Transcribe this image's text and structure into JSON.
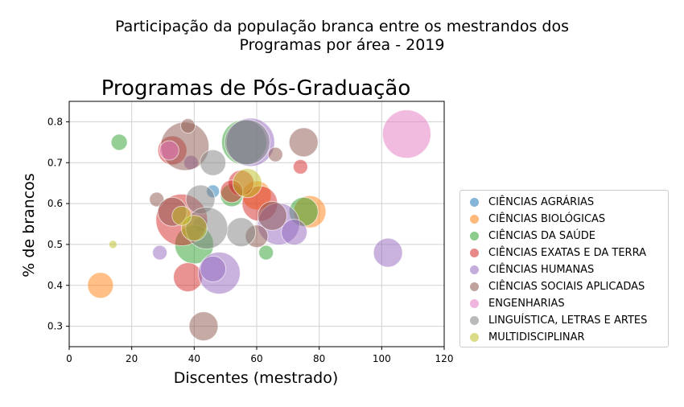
{
  "header": {
    "line1": "Participação da população branca entre os mestrandos dos",
    "line2": "Programas por área - 2019"
  },
  "chart_data": {
    "type": "scatter",
    "title": "Programas de Pós-Graduação",
    "xlabel": "Discentes (mestrado)",
    "ylabel": "% de brancos",
    "xlim": [
      0,
      120
    ],
    "ylim": [
      0.25,
      0.85
    ],
    "xticks": [
      "0",
      "20",
      "40",
      "60",
      "80",
      "100",
      "120"
    ],
    "yticks": [
      "0.3",
      "0.4",
      "0.5",
      "0.6",
      "0.7",
      "0.8"
    ],
    "grid": true,
    "legend_position": "right",
    "series": [
      {
        "name": "CIÊNCIAS AGRÁRIAS",
        "color": "#1f77b4",
        "points": [
          [
            46,
            0.63,
            8
          ],
          [
            42,
            0.55,
            9
          ]
        ]
      },
      {
        "name": "CIÊNCIAS BIOLÓGICAS",
        "color": "#ff7f0e",
        "points": [
          [
            10,
            0.4,
            16
          ],
          [
            77,
            0.58,
            20
          ],
          [
            60,
            0.62,
            18
          ]
        ]
      },
      {
        "name": "CIÊNCIAS DA SAÚDE",
        "color": "#2ca02c",
        "points": [
          [
            16,
            0.75,
            10
          ],
          [
            56,
            0.75,
            28
          ],
          [
            40,
            0.5,
            24
          ],
          [
            75,
            0.58,
            18
          ],
          [
            63,
            0.48,
            9
          ],
          [
            52,
            0.62,
            14
          ]
        ]
      },
      {
        "name": "CIÊNCIAS EXATAS E DA TERRA",
        "color": "#d62728",
        "points": [
          [
            33,
            0.73,
            18
          ],
          [
            36,
            0.56,
            32
          ],
          [
            38,
            0.42,
            18
          ],
          [
            61,
            0.6,
            22
          ],
          [
            74,
            0.69,
            9
          ],
          [
            55,
            0.65,
            16
          ],
          [
            52,
            0.63,
            14
          ]
        ]
      },
      {
        "name": "CIÊNCIAS HUMANAS",
        "color": "#9467bd",
        "points": [
          [
            29,
            0.48,
            9
          ],
          [
            39,
            0.7,
            9
          ],
          [
            48,
            0.43,
            26
          ],
          [
            46,
            0.44,
            16
          ],
          [
            67,
            0.55,
            26
          ],
          [
            102,
            0.48,
            18
          ],
          [
            58,
            0.75,
            30
          ],
          [
            72,
            0.53,
            16
          ]
        ]
      },
      {
        "name": "CIÊNCIAS SOCIAIS APLICADAS",
        "color": "#8c564b",
        "points": [
          [
            37,
            0.74,
            30
          ],
          [
            38,
            0.79,
            9
          ],
          [
            28,
            0.61,
            9
          ],
          [
            75,
            0.75,
            18
          ],
          [
            66,
            0.72,
            9
          ],
          [
            43,
            0.3,
            18
          ],
          [
            33,
            0.58,
            18
          ],
          [
            65,
            0.57,
            18
          ],
          [
            60,
            0.52,
            14
          ]
        ]
      },
      {
        "name": "ENGENHARIAS",
        "color": "#e377c2",
        "points": [
          [
            108,
            0.77,
            30
          ],
          [
            32,
            0.73,
            12
          ]
        ]
      },
      {
        "name": "LINGUÍSTICA, LETRAS E ARTES",
        "color": "#7f7f7f",
        "points": [
          [
            42,
            0.61,
            18
          ],
          [
            46,
            0.7,
            16
          ],
          [
            55,
            0.53,
            18
          ],
          [
            44,
            0.54,
            26
          ],
          [
            57,
            0.75,
            28
          ]
        ]
      },
      {
        "name": "MULTIDISCIPLINAR",
        "color": "#bcbd22",
        "points": [
          [
            14,
            0.5,
            5
          ],
          [
            40,
            0.54,
            16
          ],
          [
            57,
            0.65,
            18
          ],
          [
            36,
            0.57,
            12
          ]
        ]
      }
    ]
  }
}
